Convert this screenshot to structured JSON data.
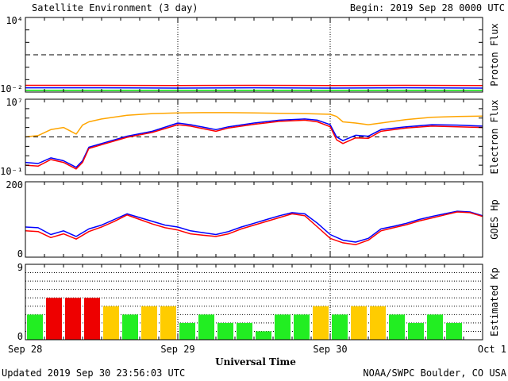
{
  "header": {
    "title": "Satellite Environment (3 day)",
    "begin": "Begin:  2019 Sep 28 0000 UTC"
  },
  "footer": {
    "updated": "Updated 2019 Sep 30 23:56:03 UTC",
    "credit": "NOAA/SWPC Boulder, CO USA",
    "x_axis_title": "Universal Time"
  },
  "x_axis": {
    "range_hours": [
      0,
      72
    ],
    "ticks": [
      {
        "hour": 0,
        "label": "Sep 28"
      },
      {
        "hour": 24,
        "label": "Sep 29"
      },
      {
        "hour": 48,
        "label": "Sep 30"
      },
      {
        "hour": 72,
        "label": "Oct 1"
      }
    ]
  },
  "chart_data": [
    {
      "type": "line",
      "ylabel": "Proton Flux",
      "yscale": "log",
      "ylim": [
        0.01,
        10000
      ],
      "ytick_labels": [
        {
          "value": 10000,
          "label": "10⁴"
        },
        {
          "value": 0.01,
          "label": "10⁻²"
        }
      ],
      "threshold": 10,
      "x_units": "hours since Sep 28 0000 UTC",
      "series": [
        {
          "color": "#ff0000",
          "x": [
            0,
            12,
            24,
            36,
            48,
            60,
            72
          ],
          "values": [
            0.035,
            0.035,
            0.034,
            0.035,
            0.034,
            0.035,
            0.034
          ]
        },
        {
          "color": "#0000ff",
          "x": [
            0,
            12,
            24,
            36,
            48,
            60,
            72
          ],
          "values": [
            0.022,
            0.022,
            0.021,
            0.022,
            0.021,
            0.022,
            0.021
          ]
        },
        {
          "color": "#00dd00",
          "x": [
            0,
            12,
            24,
            36,
            48,
            60,
            72
          ],
          "values": [
            0.014,
            0.014,
            0.014,
            0.014,
            0.014,
            0.014,
            0.014
          ]
        }
      ]
    },
    {
      "type": "line",
      "ylabel": "Electron Flux",
      "yscale": "log",
      "ylim": [
        0.1,
        10000000
      ],
      "ytick_labels": [
        {
          "value": 10000000,
          "label": "10⁷"
        },
        {
          "value": 0.1,
          "label": "10⁻¹"
        }
      ],
      "threshold": 1000,
      "x_units": "hours since Sep 28 0000 UTC",
      "series": [
        {
          "color": "#ffa500",
          "x": [
            0,
            2,
            4,
            6,
            8,
            9,
            10,
            12,
            16,
            20,
            24,
            28,
            32,
            36,
            40,
            44,
            48,
            49,
            50,
            52,
            54,
            56,
            60,
            64,
            68,
            72
          ],
          "values": [
            1000,
            1400,
            6000,
            10000,
            2000,
            18000,
            40000,
            80000,
            200000,
            300000,
            350000,
            380000,
            380000,
            350000,
            320000,
            300000,
            250000,
            150000,
            40000,
            30000,
            20000,
            30000,
            70000,
            120000,
            150000,
            160000
          ]
        },
        {
          "color": "#0000ff",
          "x": [
            0,
            2,
            4,
            6,
            8,
            9,
            10,
            12,
            16,
            20,
            24,
            26,
            30,
            32,
            36,
            40,
            44,
            46,
            48,
            49,
            50,
            52,
            54,
            56,
            60,
            64,
            68,
            72
          ],
          "values": [
            2,
            1.5,
            6,
            3,
            0.6,
            3,
            80,
            200,
            1200,
            4000,
            30000,
            20000,
            6000,
            12000,
            30000,
            60000,
            80000,
            60000,
            20000,
            1000,
            400,
            1500,
            1200,
            6000,
            12000,
            20000,
            18000,
            14000
          ]
        },
        {
          "color": "#ff0000",
          "x": [
            0,
            2,
            4,
            6,
            8,
            9,
            10,
            12,
            16,
            20,
            24,
            26,
            30,
            32,
            36,
            40,
            44,
            46,
            48,
            49,
            50,
            52,
            54,
            56,
            60,
            64,
            68,
            72
          ],
          "values": [
            1,
            0.8,
            4,
            2,
            0.4,
            2,
            60,
            150,
            900,
            3000,
            20000,
            14000,
            4000,
            9000,
            22000,
            45000,
            60000,
            40000,
            12000,
            500,
            200,
            800,
            700,
            4000,
            9000,
            14000,
            12000,
            10000
          ]
        }
      ]
    },
    {
      "type": "line",
      "ylabel": "GOES Hp",
      "ylim": [
        0,
        200
      ],
      "ytick_labels": [
        {
          "value": 200,
          "label": "200"
        },
        {
          "value": 0,
          "label": "0"
        }
      ],
      "x_units": "hours since Sep 28 0000 UTC",
      "series": [
        {
          "color": "#0000ff",
          "x": [
            0,
            2,
            4,
            6,
            8,
            10,
            12,
            14,
            16,
            18,
            20,
            22,
            24,
            26,
            28,
            30,
            32,
            34,
            36,
            38,
            40,
            42,
            44,
            46,
            48,
            50,
            52,
            54,
            56,
            58,
            60,
            62,
            64,
            66,
            68,
            70,
            72
          ],
          "values": [
            80,
            78,
            60,
            70,
            55,
            75,
            85,
            100,
            115,
            105,
            95,
            85,
            80,
            70,
            65,
            60,
            68,
            80,
            90,
            100,
            110,
            118,
            115,
            90,
            60,
            45,
            40,
            50,
            75,
            82,
            90,
            100,
            108,
            115,
            122,
            120,
            110
          ]
        },
        {
          "color": "#ff0000",
          "x": [
            0,
            2,
            4,
            6,
            8,
            10,
            12,
            14,
            16,
            18,
            20,
            22,
            24,
            26,
            28,
            30,
            32,
            34,
            36,
            38,
            40,
            42,
            44,
            46,
            48,
            50,
            52,
            54,
            56,
            58,
            60,
            62,
            64,
            66,
            68,
            70,
            72
          ],
          "values": [
            70,
            68,
            52,
            62,
            48,
            68,
            80,
            95,
            112,
            100,
            88,
            78,
            72,
            62,
            58,
            55,
            62,
            75,
            85,
            95,
            105,
            115,
            110,
            80,
            50,
            38,
            33,
            45,
            70,
            78,
            86,
            96,
            104,
            112,
            120,
            118,
            108
          ]
        }
      ]
    },
    {
      "type": "bar",
      "ylabel": "Estimated Kp",
      "ylim": [
        0,
        9
      ],
      "ytick_labels": [
        {
          "value": 9,
          "label": "9"
        },
        {
          "value": 0,
          "label": "0"
        }
      ],
      "bar_width_hours": 3,
      "x": [
        0,
        3,
        6,
        9,
        12,
        15,
        18,
        21,
        24,
        27,
        30,
        33,
        36,
        39,
        42,
        45,
        48,
        51,
        54,
        57,
        60,
        63,
        66,
        69
      ],
      "values": [
        3,
        5,
        5,
        5,
        4,
        3,
        4,
        4,
        2,
        3,
        2,
        2,
        1,
        3,
        3,
        4,
        3,
        4,
        4,
        3,
        2,
        3,
        2,
        0
      ],
      "colors": {
        "green": "#22ee22",
        "yellow": "#ffcc00",
        "red": "#ee0000"
      }
    }
  ]
}
